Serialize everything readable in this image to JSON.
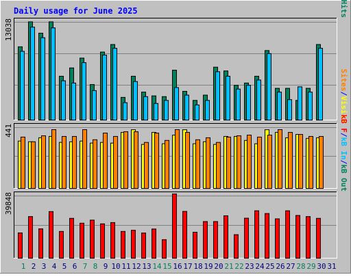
{
  "title": "Daily usage for June 2025",
  "colors": {
    "background": "#c0c0c0",
    "title": "#0000ff",
    "hits": "#00805c",
    "files": "#00c0ff",
    "pages": "#00e0ff",
    "visits": "#ffff00",
    "sites": "#ff8000",
    "kbytes": "#ff0000",
    "day_normal": "#000080",
    "day_weekend": "#00805c"
  },
  "panels": {
    "top": {
      "max_label": "13038"
    },
    "mid": {
      "max_label": "441"
    },
    "bot": {
      "max_label": "39848"
    }
  },
  "chart_data": [
    {
      "type": "bar",
      "panel": "top",
      "x": [
        1,
        2,
        3,
        4,
        5,
        6,
        7,
        8,
        9,
        10,
        11,
        12,
        13,
        14,
        15,
        16,
        17,
        18,
        19,
        20,
        21,
        22,
        23,
        24,
        25,
        26,
        27,
        28,
        29,
        30
      ],
      "ylim": [
        0,
        13038
      ],
      "series": [
        {
          "name": "Hits",
          "values": [
            9700,
            13000,
            11500,
            13000,
            5800,
            6900,
            8200,
            4700,
            9000,
            10000,
            3000,
            5800,
            3700,
            3200,
            3100,
            6600,
            3800,
            2600,
            3300,
            7000,
            6500,
            4600,
            4900,
            5800,
            9200,
            4200,
            4200,
            2600,
            4200,
            10000
          ]
        },
        {
          "name": "Files",
          "values": [
            9100,
            12300,
            10900,
            12200,
            5200,
            4900,
            7600,
            3900,
            8600,
            9500,
            2300,
            5100,
            3100,
            2200,
            2600,
            4300,
            3300,
            2000,
            2600,
            6400,
            5800,
            4100,
            4600,
            5300,
            8800,
            3700,
            2700,
            4400,
            3700,
            9500
          ]
        },
        {
          "name": "Pages",
          "values": [
            0,
            0,
            0,
            0,
            0,
            0,
            0,
            0,
            0,
            0,
            0,
            0,
            0,
            0,
            0,
            0,
            0,
            0,
            0,
            0,
            0,
            0,
            0,
            0,
            0,
            0,
            0,
            0,
            0,
            0
          ]
        }
      ],
      "legend": [
        "Pages",
        "Files",
        "Hits"
      ]
    },
    {
      "type": "bar",
      "panel": "mid",
      "x": [
        1,
        2,
        3,
        4,
        5,
        6,
        7,
        8,
        9,
        10,
        11,
        12,
        13,
        14,
        15,
        16,
        17,
        18,
        19,
        20,
        21,
        22,
        23,
        24,
        25,
        26,
        27,
        28,
        29,
        30
      ],
      "ylim": [
        0,
        441
      ],
      "series": [
        {
          "name": "Visits",
          "values": [
            355,
            350,
            380,
            390,
            345,
            350,
            355,
            340,
            345,
            340,
            420,
            440,
            330,
            420,
            335,
            400,
            440,
            335,
            350,
            330,
            390,
            390,
            360,
            335,
            440,
            420,
            380,
            405,
            375,
            380
          ]
        },
        {
          "name": "Sites",
          "values": [
            385,
            350,
            395,
            441,
            390,
            390,
            441,
            365,
            415,
            390,
            425,
            425,
            345,
            415,
            360,
            441,
            420,
            365,
            380,
            345,
            385,
            395,
            400,
            385,
            400,
            441,
            420,
            405,
            390,
            390
          ]
        }
      ],
      "legend": [
        "Sites",
        "Visits"
      ]
    },
    {
      "type": "bar",
      "panel": "bot",
      "x": [
        1,
        2,
        3,
        4,
        5,
        6,
        7,
        8,
        9,
        10,
        11,
        12,
        13,
        14,
        15,
        16,
        17,
        18,
        19,
        20,
        21,
        22,
        23,
        24,
        25,
        26,
        27,
        28,
        29,
        30
      ],
      "ylim": [
        0,
        39848
      ],
      "series": [
        {
          "name": "KBytes",
          "values": [
            15700,
            25800,
            18200,
            28900,
            16600,
            24700,
            21700,
            23600,
            21300,
            22100,
            16600,
            17300,
            15600,
            18100,
            11500,
            39848,
            29000,
            16100,
            22700,
            22700,
            26300,
            14600,
            24800,
            29400,
            27700,
            24400,
            29400,
            26500,
            25800,
            24700
          ]
        }
      ],
      "legend": [
        "KBytes F",
        "KB In",
        "KB Out"
      ]
    }
  ],
  "days": [
    "1",
    "2",
    "3",
    "4",
    "5",
    "6",
    "7",
    "8",
    "9",
    "10",
    "11",
    "12",
    "13",
    "14",
    "15",
    "16",
    "17",
    "18",
    "19",
    "20",
    "21",
    "22",
    "23",
    "24",
    "25",
    "26",
    "27",
    "28",
    "29",
    "30",
    "31"
  ],
  "weekend_days": [
    1,
    7,
    8,
    14,
    15,
    21,
    22,
    28,
    29
  ],
  "legend_top": [
    {
      "text": "Pages",
      "color_key": "pages"
    },
    {
      "text": "/",
      "color_key": "title"
    },
    {
      "text": "Files",
      "color_key": "files"
    },
    {
      "text": "/",
      "color_key": "title"
    },
    {
      "text": "Hits",
      "color_key": "hits"
    }
  ],
  "legend_mid": [
    {
      "text": "Sites",
      "color_key": "sites"
    },
    {
      "text": "/",
      "color_key": "title"
    },
    {
      "text": "Visits",
      "color_key": "visits"
    }
  ],
  "legend_bot": [
    {
      "text": "kB F",
      "color_key": "kbytes"
    },
    {
      "text": "/",
      "color_key": "title"
    },
    {
      "text": "kB In",
      "color_key": "files"
    },
    {
      "text": "/",
      "color_key": "title"
    },
    {
      "text": "kB Out",
      "color_key": "hits"
    }
  ]
}
